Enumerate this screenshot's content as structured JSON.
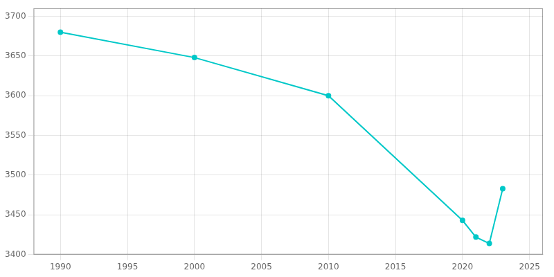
{
  "chart_data": {
    "type": "line",
    "x": [
      1990,
      2000,
      2010,
      2020,
      2021,
      2022,
      2023
    ],
    "values": [
      3680,
      3648,
      3600,
      3443,
      3422,
      3414,
      3483
    ],
    "color": "#00C8C8",
    "marker": "circle",
    "xlim": [
      1988,
      2026
    ],
    "ylim": [
      3400,
      3710
    ],
    "xticks": [
      1990,
      1995,
      2000,
      2005,
      2010,
      2015,
      2020,
      2025
    ],
    "yticks": [
      3400,
      3450,
      3500,
      3550,
      3600,
      3650,
      3700
    ],
    "grid": true
  }
}
